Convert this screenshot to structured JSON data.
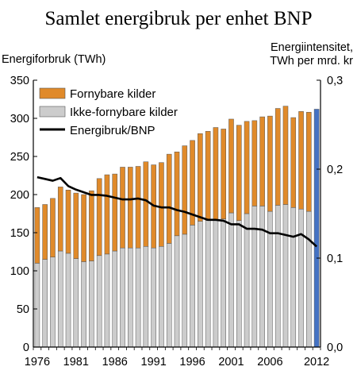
{
  "chart_data": {
    "type": "bar",
    "title": "Samlet energibruk per enhet BNP",
    "ylabel": "Energiforbruk (TWh)",
    "y2label_line1": "Energiintensitet,",
    "y2label_line2": "TWh per mrd. kr",
    "ylim": [
      0,
      350
    ],
    "y2lim": [
      0,
      0.3
    ],
    "yticks": [
      "0",
      "50",
      "100",
      "150",
      "200",
      "250",
      "300",
      "350"
    ],
    "y2ticks": [
      "0,0",
      "0,1",
      "0,2",
      "0,3"
    ],
    "xtick_labels": [
      "1976",
      "1981",
      "1986",
      "1991",
      "1996",
      "2001",
      "2006",
      "2012"
    ],
    "x": [
      1976,
      1977,
      1978,
      1979,
      1980,
      1981,
      1982,
      1983,
      1984,
      1985,
      1986,
      1987,
      1988,
      1989,
      1990,
      1991,
      1992,
      1993,
      1994,
      1995,
      1996,
      1997,
      1998,
      1999,
      2000,
      2001,
      2002,
      2003,
      2004,
      2005,
      2006,
      2007,
      2008,
      2009,
      2010,
      2011,
      2012
    ],
    "stacked": true,
    "grid": false,
    "legend_position": "top-left",
    "series": [
      {
        "name": "Ikke-fornybare kilder",
        "kind": "bar",
        "color": "#cccccc",
        "values": [
          110,
          115,
          118,
          126,
          123,
          116,
          112,
          113,
          120,
          122,
          126,
          130,
          130,
          130,
          132,
          130,
          132,
          136,
          146,
          148,
          160,
          165,
          166,
          166,
          168,
          176,
          166,
          175,
          185,
          185,
          178,
          186,
          187,
          183,
          181,
          178,
          null
        ]
      },
      {
        "name": "Fornybare kilder",
        "kind": "bar",
        "color": "#e08a2a",
        "values": [
          73,
          72,
          77,
          84,
          83,
          86,
          88,
          92,
          101,
          104,
          101,
          106,
          106,
          107,
          111,
          109,
          110,
          117,
          110,
          116,
          111,
          115,
          117,
          122,
          118,
          123,
          125,
          121,
          112,
          117,
          125,
          127,
          129,
          118,
          128,
          130,
          null
        ]
      },
      {
        "name": "",
        "kind": "bar",
        "color": "#4472c4",
        "values": [
          null,
          null,
          null,
          null,
          null,
          null,
          null,
          null,
          null,
          null,
          null,
          null,
          null,
          null,
          null,
          null,
          null,
          null,
          null,
          null,
          null,
          null,
          null,
          null,
          null,
          null,
          null,
          null,
          null,
          null,
          null,
          null,
          null,
          null,
          null,
          null,
          312
        ]
      },
      {
        "name": "Energibruk/BNP",
        "kind": "line",
        "axis": "right",
        "color": "#000000",
        "values": [
          0.191,
          0.189,
          0.187,
          0.19,
          0.181,
          0.177,
          0.174,
          0.171,
          0.171,
          0.17,
          0.168,
          0.166,
          0.166,
          0.167,
          0.165,
          0.159,
          0.157,
          0.157,
          0.154,
          0.152,
          0.149,
          0.146,
          0.143,
          0.143,
          0.142,
          0.138,
          0.138,
          0.133,
          0.133,
          0.132,
          0.128,
          0.128,
          0.126,
          0.124,
          0.127,
          0.121,
          0.113
        ]
      }
    ]
  }
}
